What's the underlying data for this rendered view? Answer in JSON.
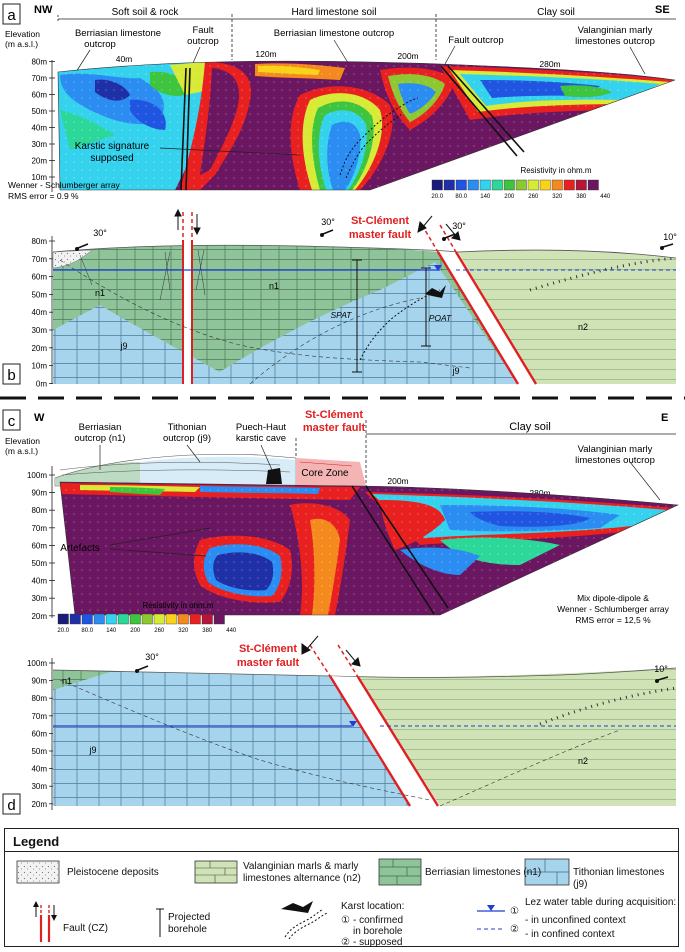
{
  "panels": {
    "a": {
      "letter": "a",
      "dir_left": "NW",
      "dir_right": "SE",
      "zones": [
        "Soft soil & rock",
        "Hard limestone soil",
        "Clay soil"
      ],
      "elevation_label": "Elevation",
      "elevation_unit": "(m a.s.l.)",
      "annotations": {
        "berriasian_1": "Berriasian limestone",
        "berriasian_2": "outcrop",
        "fault_1": "Fault",
        "fault_2": "outcrop",
        "berriasian_hard": "Berriasian limestone outcrop",
        "fault_outcrop": "Fault outcrop",
        "valanginian_1": "Valanginian marly",
        "valanginian_2": "limestones outcrop",
        "karstic_1": "Karstic signature",
        "karstic_2": "supposed"
      },
      "distances": [
        "40m",
        "120m",
        "200m",
        "280m"
      ],
      "array_label": "Wenner - Schlumberger array",
      "rms": "RMS error = 0.9 %",
      "resistivity_title": "Resistivity in ohm.m",
      "yticks": [
        "80m",
        "70m",
        "60m",
        "50m",
        "40m",
        "30m",
        "20m",
        "10m"
      ]
    },
    "b": {
      "letter": "b",
      "dips": [
        "30°",
        "30°",
        "30°",
        "10°"
      ],
      "fault_label_1": "St-Clément",
      "fault_label_2": "master fault",
      "units": [
        "n1",
        "n1",
        "j9",
        "j9",
        "n2"
      ],
      "boreholes": [
        "SPAT",
        "POAT"
      ],
      "yticks": [
        "80m",
        "70m",
        "60m",
        "50m",
        "40m",
        "30m",
        "20m",
        "10m",
        "0m"
      ]
    },
    "c": {
      "letter": "c",
      "dir_left": "W",
      "dir_right": "E",
      "elevation_label": "Elevation",
      "elevation_unit": "(m a.s.l.)",
      "annotations": {
        "berriasian_1": "Berriasian",
        "berriasian_2": "outcrop (n1)",
        "tithonian_1": "Tithonian",
        "tithonian_2": "outcrop (j9)",
        "cave_1": "Puech-Haut",
        "cave_2": "karstic cave",
        "fault_1": "St-Clément",
        "fault_2": "master fault",
        "core_zone": "Core Zone",
        "clay": "Clay soil",
        "valanginian_1": "Valanginian marly",
        "valanginian_2": "limestones outcrop",
        "artefacts": "Artefacts"
      },
      "distances": [
        "200m",
        "280m"
      ],
      "array_label_1": "Mix dipole-dipole &",
      "array_label_2": "Wenner - Schlumberger array",
      "rms": "RMS error = 12,5 %",
      "resistivity_title": "Resistivity in ohm.m",
      "yticks": [
        "100m",
        "90m",
        "80m",
        "70m",
        "60m",
        "50m",
        "40m",
        "30m",
        "20m"
      ]
    },
    "d": {
      "letter": "d",
      "dips": [
        "30°",
        "10°"
      ],
      "fault_label_1": "St-Clément",
      "fault_label_2": "master fault",
      "units": [
        "n1",
        "j9",
        "n2"
      ],
      "yticks": [
        "100m",
        "90m",
        "80m",
        "70m",
        "60m",
        "50m",
        "40m",
        "30m",
        "20m"
      ]
    }
  },
  "colorscale": {
    "colors": [
      "#1a1a78",
      "#1f2fa6",
      "#1f55e0",
      "#2b8cf2",
      "#35d2ee",
      "#2bd899",
      "#3fc43f",
      "#8dc832",
      "#d7ea35",
      "#f9d21a",
      "#f48a1d",
      "#e82020",
      "#b51538",
      "#6b1660"
    ],
    "ticks": [
      "20.0",
      "80.0",
      "140",
      "200",
      "260",
      "320",
      "380",
      "440"
    ]
  },
  "legend": {
    "title": "Legend",
    "pleistocene": "Pleistocene deposits",
    "valanginian_1": "Valanginian marls & marly",
    "valanginian_2": "limestones alternance (n2)",
    "berriasian": "Berriasian limestones (n1)",
    "tithonian": "Tithonian limestones (j9)",
    "fault": "Fault (CZ)",
    "borehole_1": "Projected",
    "borehole_2": "borehole",
    "karst_title": "Karst location:",
    "karst_1a": "- confirmed",
    "karst_1b": "in borehole",
    "karst_2": "- supposed",
    "water_title": "Lez water table during acquisition:",
    "water_1": "- in unconfined context",
    "water_2": "- in confined context",
    "circ1": "①",
    "circ2": "②"
  },
  "colors": {
    "n1": "#8fc39a",
    "n2": "#cfe3b7",
    "j9": "#a6d4ec",
    "fault": "#e02020",
    "water": "#1f3fd8",
    "fault_label": "#e02020"
  }
}
